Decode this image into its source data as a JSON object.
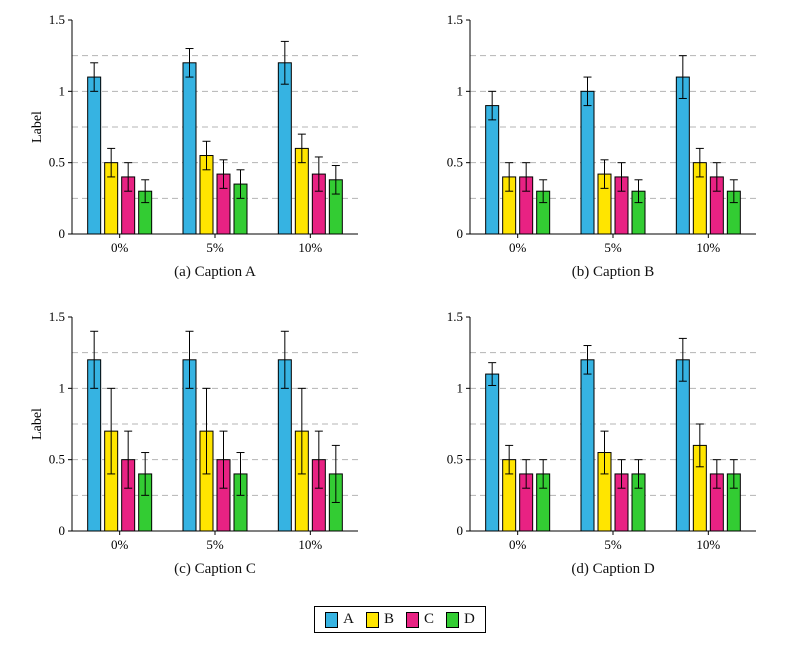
{
  "legend": {
    "items": [
      {
        "label": "A",
        "color": "#36B3E2"
      },
      {
        "label": "B",
        "color": "#FFE500"
      },
      {
        "label": "C",
        "color": "#E82283"
      },
      {
        "label": "D",
        "color": "#33CC33"
      }
    ]
  },
  "chart_data": [
    {
      "id": "a",
      "type": "bar",
      "caption": "(a) Caption A",
      "ylabel": "Label",
      "ylim": [
        0,
        1.5
      ],
      "yticks": [
        "0",
        "0.5",
        "1",
        "1.5"
      ],
      "gridlines": [
        0.25,
        0.5,
        0.75,
        1,
        1.25
      ],
      "categories": [
        "0%",
        "5%",
        "10%"
      ],
      "series": [
        {
          "name": "A",
          "color": "#36B3E2",
          "values": [
            1.1,
            1.2,
            1.2
          ],
          "errors": [
            0.1,
            0.1,
            0.15
          ]
        },
        {
          "name": "B",
          "color": "#FFE500",
          "values": [
            0.5,
            0.55,
            0.6
          ],
          "errors": [
            0.1,
            0.1,
            0.1
          ]
        },
        {
          "name": "C",
          "color": "#E82283",
          "values": [
            0.4,
            0.42,
            0.42
          ],
          "errors": [
            0.1,
            0.1,
            0.12
          ]
        },
        {
          "name": "D",
          "color": "#33CC33",
          "values": [
            0.3,
            0.35,
            0.38
          ],
          "errors": [
            0.08,
            0.1,
            0.1
          ]
        }
      ]
    },
    {
      "id": "b",
      "type": "bar",
      "caption": "(b) Caption B",
      "ylabel": "",
      "ylim": [
        0,
        1.5
      ],
      "yticks": [
        "0",
        "0.5",
        "1",
        "1.5"
      ],
      "gridlines": [
        0.25,
        0.5,
        0.75,
        1,
        1.25
      ],
      "categories": [
        "0%",
        "5%",
        "10%"
      ],
      "series": [
        {
          "name": "A",
          "color": "#36B3E2",
          "values": [
            0.9,
            1.0,
            1.1
          ],
          "errors": [
            0.1,
            0.1,
            0.15
          ]
        },
        {
          "name": "B",
          "color": "#FFE500",
          "values": [
            0.4,
            0.42,
            0.5
          ],
          "errors": [
            0.1,
            0.1,
            0.1
          ]
        },
        {
          "name": "C",
          "color": "#E82283",
          "values": [
            0.4,
            0.4,
            0.4
          ],
          "errors": [
            0.1,
            0.1,
            0.1
          ]
        },
        {
          "name": "D",
          "color": "#33CC33",
          "values": [
            0.3,
            0.3,
            0.3
          ],
          "errors": [
            0.08,
            0.08,
            0.08
          ]
        }
      ]
    },
    {
      "id": "c",
      "type": "bar",
      "caption": "(c) Caption C",
      "ylabel": "Label",
      "ylim": [
        0,
        1.5
      ],
      "yticks": [
        "0",
        "0.5",
        "1",
        "1.5"
      ],
      "gridlines": [
        0.25,
        0.5,
        0.75,
        1,
        1.25
      ],
      "categories": [
        "0%",
        "5%",
        "10%"
      ],
      "series": [
        {
          "name": "A",
          "color": "#36B3E2",
          "values": [
            1.2,
            1.2,
            1.2
          ],
          "errors": [
            0.2,
            0.2,
            0.2
          ]
        },
        {
          "name": "B",
          "color": "#FFE500",
          "values": [
            0.7,
            0.7,
            0.7
          ],
          "errors": [
            0.3,
            0.3,
            0.3
          ]
        },
        {
          "name": "C",
          "color": "#E82283",
          "values": [
            0.5,
            0.5,
            0.5
          ],
          "errors": [
            0.2,
            0.2,
            0.2
          ]
        },
        {
          "name": "D",
          "color": "#33CC33",
          "values": [
            0.4,
            0.4,
            0.4
          ],
          "errors": [
            0.15,
            0.15,
            0.2
          ]
        }
      ]
    },
    {
      "id": "d",
      "type": "bar",
      "caption": "(d) Caption D",
      "ylabel": "",
      "ylim": [
        0,
        1.5
      ],
      "yticks": [
        "0",
        "0.5",
        "1",
        "1.5"
      ],
      "gridlines": [
        0.25,
        0.5,
        0.75,
        1,
        1.25
      ],
      "categories": [
        "0%",
        "5%",
        "10%"
      ],
      "series": [
        {
          "name": "A",
          "color": "#36B3E2",
          "values": [
            1.1,
            1.2,
            1.2
          ],
          "errors": [
            0.08,
            0.1,
            0.15
          ]
        },
        {
          "name": "B",
          "color": "#FFE500",
          "values": [
            0.5,
            0.55,
            0.6
          ],
          "errors": [
            0.1,
            0.15,
            0.15
          ]
        },
        {
          "name": "C",
          "color": "#E82283",
          "values": [
            0.4,
            0.4,
            0.4
          ],
          "errors": [
            0.1,
            0.1,
            0.1
          ]
        },
        {
          "name": "D",
          "color": "#33CC33",
          "values": [
            0.4,
            0.4,
            0.4
          ],
          "errors": [
            0.1,
            0.1,
            0.1
          ]
        }
      ]
    }
  ]
}
